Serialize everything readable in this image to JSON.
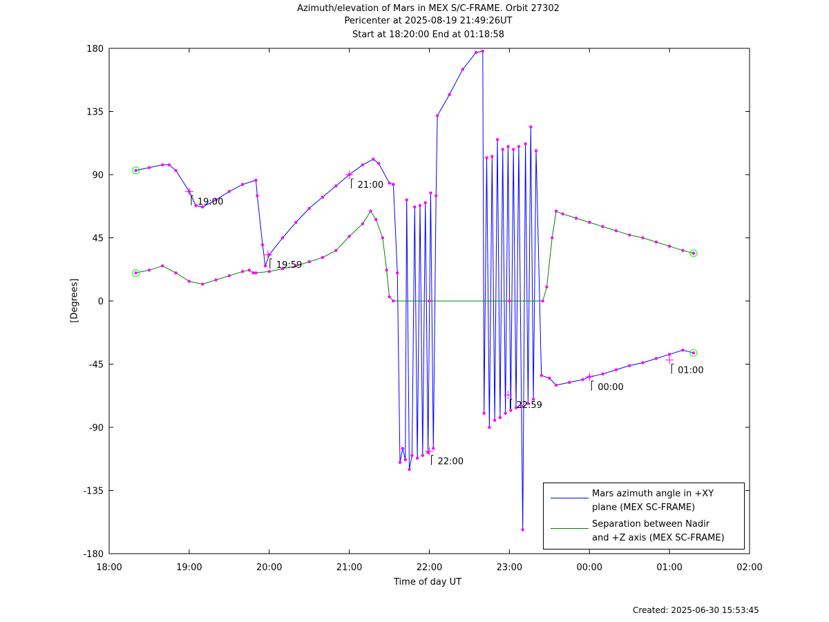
{
  "titles": {
    "line1": "Azimuth/elevation of Mars in MEX S/C-FRAME.  Orbit 27302",
    "line2": "Pericenter at 2025-08-19 21:49:26UT",
    "line3": "Start at 18:20:00 End at 01:18:58"
  },
  "footer": "Created: 2025-06-30 15:53:45",
  "chart_data": {
    "type": "line",
    "xlabel": "Time of day UT",
    "ylabel": "[Degrees]",
    "xlim": [
      "18:00",
      "02:00"
    ],
    "ylim": [
      -180,
      180
    ],
    "x_tick_labels": [
      "18:00",
      "19:00",
      "20:00",
      "21:00",
      "22:00",
      "23:00",
      "00:00",
      "01:00",
      "02:00"
    ],
    "y_tick_labels": [
      "180",
      "135",
      "90",
      "45",
      "0",
      "-45",
      "-90",
      "-135",
      "-180"
    ],
    "y_ticks": [
      180,
      135,
      90,
      45,
      0,
      -45,
      -90,
      -135,
      -180
    ],
    "grid": false,
    "legend_position": "bottom-right",
    "colors": {
      "azimuth": "#0000ff",
      "separation": "#008000",
      "markers": "#ff00ff",
      "endpoints": "#00ff00"
    },
    "series": [
      {
        "name": "Mars azimuth angle in +XY plane (MEX SC-FRAME)",
        "color": "#0000ff",
        "points": [
          [
            "18:20",
            93
          ],
          [
            "18:30",
            95
          ],
          [
            "18:40",
            97
          ],
          [
            "18:45",
            97
          ],
          [
            "18:50",
            93
          ],
          [
            "19:00",
            78
          ],
          [
            "19:05",
            68
          ],
          [
            "19:10",
            67
          ],
          [
            "19:20",
            72
          ],
          [
            "19:30",
            78
          ],
          [
            "19:40",
            83
          ],
          [
            "19:50",
            86
          ],
          [
            "19:51",
            75
          ],
          [
            "19:55",
            40
          ],
          [
            "19:57",
            25
          ],
          [
            "20:00",
            33
          ],
          [
            "20:10",
            45
          ],
          [
            "20:20",
            56
          ],
          [
            "20:30",
            66
          ],
          [
            "20:40",
            74
          ],
          [
            "20:50",
            82
          ],
          [
            "21:00",
            90
          ],
          [
            "21:10",
            97
          ],
          [
            "21:18",
            101
          ],
          [
            "21:22",
            98
          ],
          [
            "21:30",
            84
          ],
          [
            "21:33",
            83
          ],
          [
            "21:36",
            20
          ],
          [
            "21:38",
            -115
          ],
          [
            "21:40",
            -105
          ],
          [
            "21:42",
            -113
          ],
          [
            "21:43",
            72
          ],
          [
            "21:45",
            -120
          ],
          [
            "21:47",
            -110
          ],
          [
            "21:49",
            67
          ],
          [
            "21:51",
            -112
          ],
          [
            "21:53",
            68
          ],
          [
            "21:55",
            -110
          ],
          [
            "21:57",
            70
          ],
          [
            "21:59",
            -108
          ],
          [
            "22:01",
            77
          ],
          [
            "22:03",
            -105
          ],
          [
            "22:05",
            75
          ],
          [
            "22:06",
            132
          ],
          [
            "22:15",
            147
          ],
          [
            "22:25",
            165
          ],
          [
            "22:35",
            177
          ],
          [
            "22:40",
            178
          ],
          [
            "22:41",
            -80
          ],
          [
            "22:43",
            102
          ],
          [
            "22:45",
            -90
          ],
          [
            "22:47",
            103
          ],
          [
            "22:49",
            -85
          ],
          [
            "22:51",
            115
          ],
          [
            "22:53",
            -83
          ],
          [
            "22:55",
            108
          ],
          [
            "22:57",
            -80
          ],
          [
            "22:59",
            110
          ],
          [
            "23:01",
            -78
          ],
          [
            "23:03",
            108
          ],
          [
            "23:05",
            -76
          ],
          [
            "23:07",
            110
          ],
          [
            "23:09",
            -75
          ],
          [
            "23:10",
            -163
          ],
          [
            "23:12",
            112
          ],
          [
            "23:14",
            -73
          ],
          [
            "23:16",
            124
          ],
          [
            "23:18",
            -70
          ],
          [
            "23:20",
            107
          ],
          [
            "23:24",
            -53
          ],
          [
            "23:30",
            -55
          ],
          [
            "23:35",
            -60
          ],
          [
            "23:45",
            -58
          ],
          [
            "23:55",
            -56
          ],
          [
            "00:00",
            -54
          ],
          [
            "00:10",
            -52
          ],
          [
            "00:20",
            -49
          ],
          [
            "00:30",
            -46
          ],
          [
            "00:40",
            -44
          ],
          [
            "00:50",
            -41
          ],
          [
            "01:00",
            -38
          ],
          [
            "01:10",
            -35
          ],
          [
            "01:18",
            -37
          ]
        ]
      },
      {
        "name": "Separation between Nadir and +Z axis (MEX SC-FRAME)",
        "color": "#008000",
        "points": [
          [
            "18:20",
            20
          ],
          [
            "18:30",
            22
          ],
          [
            "18:40",
            25
          ],
          [
            "18:50",
            20
          ],
          [
            "19:00",
            14
          ],
          [
            "19:10",
            12
          ],
          [
            "19:20",
            15
          ],
          [
            "19:30",
            18
          ],
          [
            "19:40",
            21
          ],
          [
            "19:45",
            22
          ],
          [
            "19:48",
            20
          ],
          [
            "19:50",
            20
          ],
          [
            "20:00",
            21
          ],
          [
            "20:10",
            23
          ],
          [
            "20:20",
            25
          ],
          [
            "20:30",
            28
          ],
          [
            "20:40",
            31
          ],
          [
            "20:50",
            36
          ],
          [
            "21:00",
            46
          ],
          [
            "21:10",
            55
          ],
          [
            "21:16",
            64
          ],
          [
            "21:20",
            58
          ],
          [
            "21:25",
            45
          ],
          [
            "21:28",
            22
          ],
          [
            "21:30",
            3
          ],
          [
            "21:33",
            0
          ],
          [
            "22:00",
            0
          ],
          [
            "23:00",
            0
          ],
          [
            "23:25",
            0
          ],
          [
            "23:28",
            10
          ],
          [
            "23:32",
            45
          ],
          [
            "23:35",
            64
          ],
          [
            "23:40",
            62
          ],
          [
            "23:50",
            59
          ],
          [
            "00:00",
            56
          ],
          [
            "00:10",
            53
          ],
          [
            "00:20",
            50
          ],
          [
            "00:30",
            47
          ],
          [
            "00:40",
            45
          ],
          [
            "00:50",
            42
          ],
          [
            "01:00",
            39
          ],
          [
            "01:10",
            36
          ],
          [
            "01:18",
            34
          ]
        ]
      }
    ],
    "annotations": [
      {
        "text": "19:00",
        "x": "19:00",
        "y": 78
      },
      {
        "text": "19:59",
        "x": "19:59",
        "y": 33
      },
      {
        "text": "21:00",
        "x": "21:00",
        "y": 90
      },
      {
        "text": "22:00",
        "x": "22:00",
        "y": -107
      },
      {
        "text": "22:59",
        "x": "22:59",
        "y": -67
      },
      {
        "text": "00:00",
        "x": "00:00",
        "y": -54
      },
      {
        "text": "01:00",
        "x": "01:00",
        "y": -42
      }
    ]
  },
  "legend": {
    "azimuth_line1": "Mars azimuth angle in +XY",
    "azimuth_line2": "plane (MEX SC-FRAME)",
    "separation_line1": "Separation between Nadir",
    "separation_line2": "and +Z axis (MEX SC-FRAME)"
  }
}
